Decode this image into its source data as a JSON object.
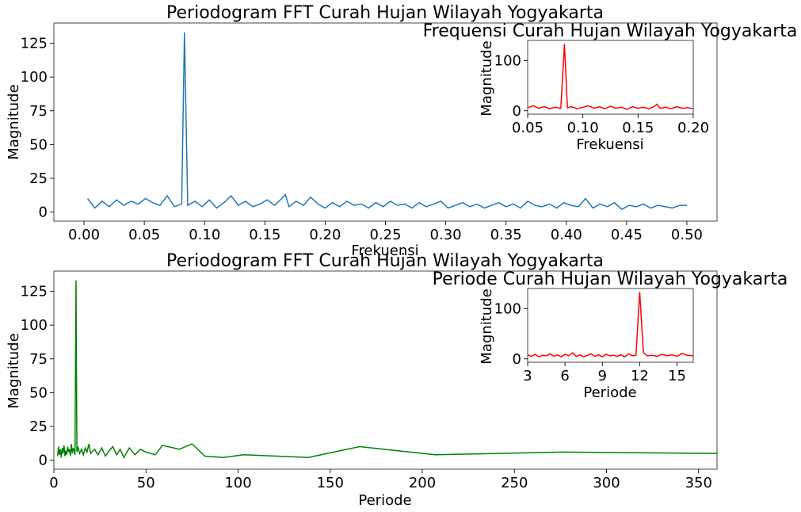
{
  "chart_data": [
    {
      "id": "p1",
      "type": "line",
      "title": "Periodogram FFT Curah Hujan Wilayah Yogyakarta",
      "xlabel": "Frekuensi",
      "ylabel": "Magnitude",
      "xlim": [
        -0.025,
        0.525
      ],
      "ylim": [
        -6.7,
        140
      ],
      "xticks": [
        "0.00",
        "0.05",
        "0.10",
        "0.15",
        "0.20",
        "0.25",
        "0.30",
        "0.35",
        "0.40",
        "0.45",
        "0.50"
      ],
      "yticks": [
        "0",
        "25",
        "50",
        "75",
        "100",
        "125"
      ],
      "grid": false,
      "color": "#1f77b4",
      "series": [
        {
          "x": [
            0.003,
            0.009,
            0.015,
            0.021,
            0.027,
            0.033,
            0.039,
            0.045,
            0.051,
            0.057,
            0.063,
            0.069,
            0.075,
            0.081,
            0.0833,
            0.086,
            0.092,
            0.098,
            0.104,
            0.11,
            0.116,
            0.122,
            0.128,
            0.134,
            0.14,
            0.146,
            0.152,
            0.158,
            0.164,
            0.167,
            0.17,
            0.176,
            0.182,
            0.188,
            0.194,
            0.2,
            0.206,
            0.212,
            0.218,
            0.224,
            0.23,
            0.236,
            0.242,
            0.248,
            0.254,
            0.26,
            0.266,
            0.272,
            0.278,
            0.284,
            0.29,
            0.296,
            0.302,
            0.308,
            0.314,
            0.32,
            0.326,
            0.332,
            0.338,
            0.344,
            0.35,
            0.356,
            0.362,
            0.368,
            0.374,
            0.38,
            0.386,
            0.392,
            0.398,
            0.404,
            0.41,
            0.416,
            0.422,
            0.428,
            0.434,
            0.44,
            0.446,
            0.452,
            0.458,
            0.464,
            0.47,
            0.476,
            0.482,
            0.488,
            0.494,
            0.5
          ],
          "y": [
            10,
            3,
            8,
            4,
            9,
            5,
            8,
            6,
            10,
            7,
            5,
            12,
            4,
            6,
            133,
            5,
            8,
            4,
            9,
            3,
            7,
            12,
            5,
            8,
            4,
            6,
            9,
            5,
            10,
            13,
            4,
            8,
            5,
            11,
            6,
            3,
            7,
            4,
            8,
            5,
            6,
            3,
            7,
            4,
            8,
            5,
            6,
            3,
            7,
            4,
            6,
            8,
            3,
            5,
            7,
            4,
            6,
            3,
            5,
            7,
            4,
            6,
            3,
            8,
            5,
            4,
            6,
            3,
            7,
            5,
            4,
            10,
            3,
            6,
            4,
            7,
            2,
            5,
            4,
            6,
            3,
            5,
            4,
            3,
            5,
            5
          ]
        }
      ]
    },
    {
      "id": "i1",
      "type": "line",
      "title": "Frequensi Curah Hujan Wilayah Yogyakarta",
      "xlabel": "Frekuensi",
      "ylabel": "Magnitude",
      "xlim": [
        0.05,
        0.2
      ],
      "ylim": [
        -6.7,
        140
      ],
      "xticks": [
        "0.05",
        "0.10",
        "0.15",
        "0.20"
      ],
      "yticks": [
        "0",
        "100"
      ],
      "grid": false,
      "color": "#ff0000",
      "series": [
        {
          "x": [
            0.05,
            0.055,
            0.06,
            0.065,
            0.07,
            0.075,
            0.08,
            0.0833,
            0.086,
            0.09,
            0.095,
            0.1,
            0.105,
            0.11,
            0.115,
            0.12,
            0.125,
            0.13,
            0.135,
            0.14,
            0.145,
            0.15,
            0.155,
            0.16,
            0.165,
            0.167,
            0.17,
            0.175,
            0.18,
            0.185,
            0.19,
            0.195,
            0.2
          ],
          "y": [
            6,
            10,
            5,
            8,
            4,
            7,
            5,
            133,
            6,
            8,
            4,
            7,
            10,
            5,
            8,
            4,
            9,
            5,
            7,
            3,
            8,
            5,
            7,
            4,
            9,
            13,
            5,
            7,
            4,
            8,
            5,
            6,
            4
          ]
        }
      ]
    },
    {
      "id": "p2",
      "type": "line",
      "title": "Periodogram FFT Curah Hujan Wilayah Yogyakarta",
      "xlabel": "Periode",
      "ylabel": "Magnitude",
      "xlim": [
        0,
        360
      ],
      "ylim": [
        -6.7,
        140
      ],
      "xticks": [
        "0",
        "50",
        "100",
        "150",
        "200",
        "250",
        "300",
        "350"
      ],
      "yticks": [
        "0",
        "25",
        "50",
        "75",
        "100",
        "125"
      ],
      "grid": false,
      "color": "#008000",
      "series": [
        {
          "x": [
            2,
            2.5,
            3,
            3.5,
            4,
            4.5,
            5,
            5.5,
            6,
            6.5,
            7,
            7.5,
            8,
            8.5,
            9,
            9.5,
            10,
            10.5,
            11,
            11.5,
            12,
            12.5,
            13,
            14,
            15,
            16,
            17,
            18,
            19,
            20,
            22,
            24,
            26,
            28,
            30,
            32,
            34,
            36,
            38,
            41,
            44,
            47,
            50,
            55,
            59,
            68,
            75,
            82,
            92,
            103,
            138,
            166,
            207,
            276,
            360
          ],
          "y": [
            3,
            10,
            4,
            8,
            2,
            9,
            5,
            11,
            3,
            7,
            4,
            10,
            6,
            8,
            3,
            12,
            5,
            9,
            7,
            4,
            133,
            6,
            10,
            5,
            8,
            4,
            9,
            6,
            12,
            5,
            8,
            4,
            9,
            3,
            7,
            10,
            4,
            8,
            2,
            9,
            4,
            8,
            6,
            4,
            11,
            8,
            12,
            3,
            2,
            4,
            2,
            10,
            4,
            6,
            5
          ]
        }
      ]
    },
    {
      "id": "i2",
      "type": "line",
      "title": "Periode Curah Hujan Wilayah Yogyakarta",
      "xlabel": "Periode",
      "ylabel": "Magnitude",
      "xlim": [
        3,
        16.3
      ],
      "ylim": [
        -6.7,
        140
      ],
      "xticks": [
        "3",
        "6",
        "9",
        "12",
        "15"
      ],
      "yticks": [
        "0",
        "100"
      ],
      "grid": false,
      "color": "#ff0000",
      "series": [
        {
          "x": [
            3,
            3.3,
            3.6,
            3.9,
            4.2,
            4.5,
            4.8,
            5.1,
            5.4,
            5.7,
            6,
            6.3,
            6.6,
            6.9,
            7.2,
            7.5,
            7.8,
            8.1,
            8.4,
            8.7,
            9,
            9.3,
            9.6,
            9.9,
            10.2,
            10.5,
            10.8,
            11.1,
            11.4,
            11.7,
            12,
            12.3,
            12.6,
            13,
            13.4,
            13.8,
            14.2,
            14.6,
            15,
            15.4,
            15.8,
            16.3
          ],
          "y": [
            8,
            5,
            9,
            4,
            7,
            6,
            10,
            5,
            8,
            4,
            9,
            6,
            12,
            5,
            8,
            4,
            7,
            10,
            5,
            8,
            4,
            9,
            6,
            7,
            5,
            8,
            4,
            10,
            6,
            7,
            133,
            12,
            6,
            7,
            5,
            9,
            6,
            8,
            5,
            11,
            7,
            6
          ]
        }
      ]
    }
  ]
}
